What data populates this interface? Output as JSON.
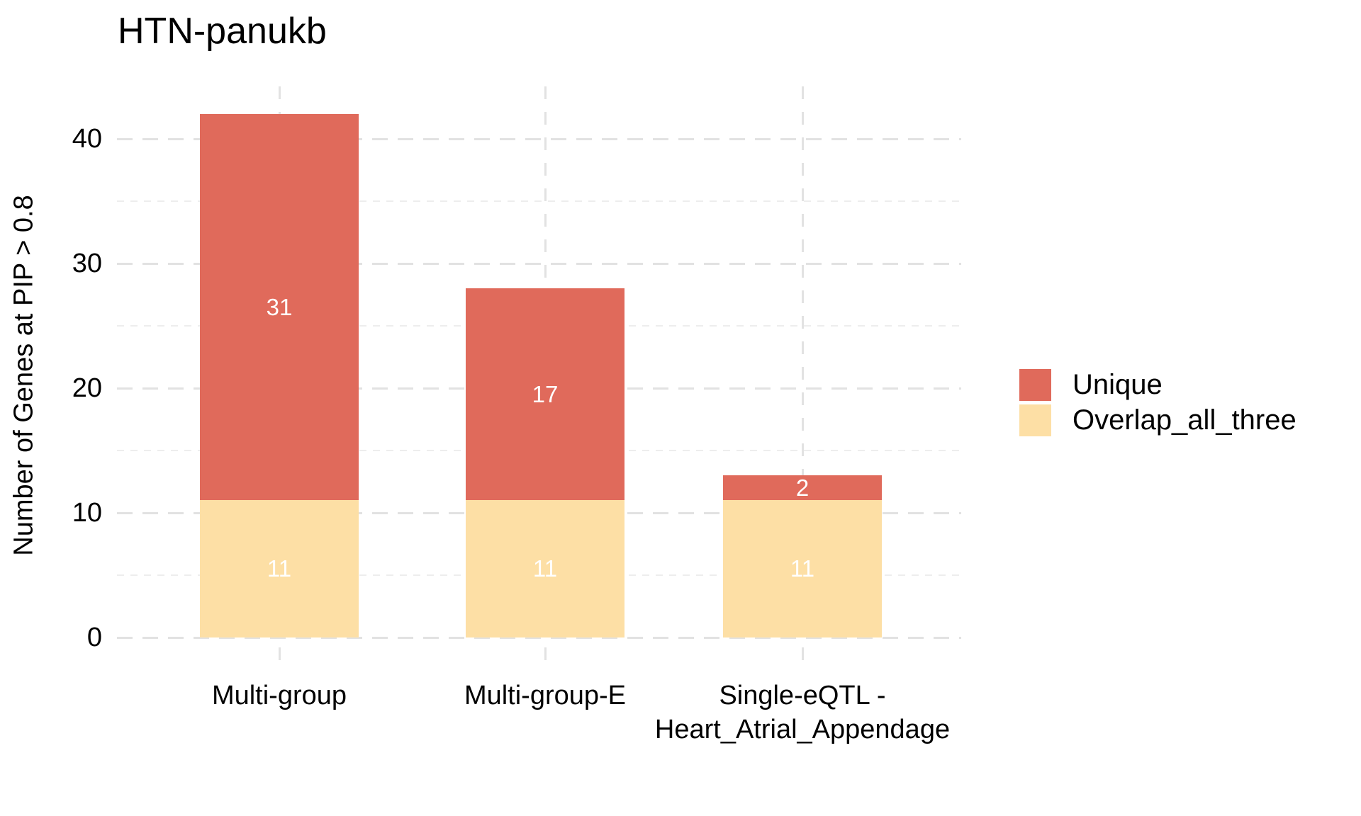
{
  "chart_data": {
    "type": "bar",
    "stacked": true,
    "title": "HTN-panukb",
    "ylabel": "Number of Genes at PIP > 0.8",
    "xlabel": "",
    "categories": [
      "Multi-group",
      "Multi-group-E",
      "Single-eQTL -\nHeart_Atrial_Appendage"
    ],
    "series": [
      {
        "name": "Overlap_all_three",
        "color": "#FDDFA5",
        "values": [
          11,
          11,
          11
        ]
      },
      {
        "name": "Unique",
        "color": "#E06A5B",
        "values": [
          31,
          17,
          2
        ]
      }
    ],
    "stack_totals": [
      42,
      28,
      13
    ],
    "value_label_color": "#FFFFFF",
    "y_major_ticks": [
      0,
      10,
      20,
      30,
      40
    ],
    "y_minor_ticks": [
      5,
      15,
      25,
      35
    ],
    "ylim": [
      -2.2,
      44.2
    ],
    "grid_style": "dashed",
    "legend_position": "right",
    "legend_order": [
      "Unique",
      "Overlap_all_three"
    ],
    "colors": {
      "major_grid": "#E2E2E2",
      "minor_grid": "#EDEDED",
      "background": "#FFFFFF",
      "text": "#000000"
    }
  }
}
